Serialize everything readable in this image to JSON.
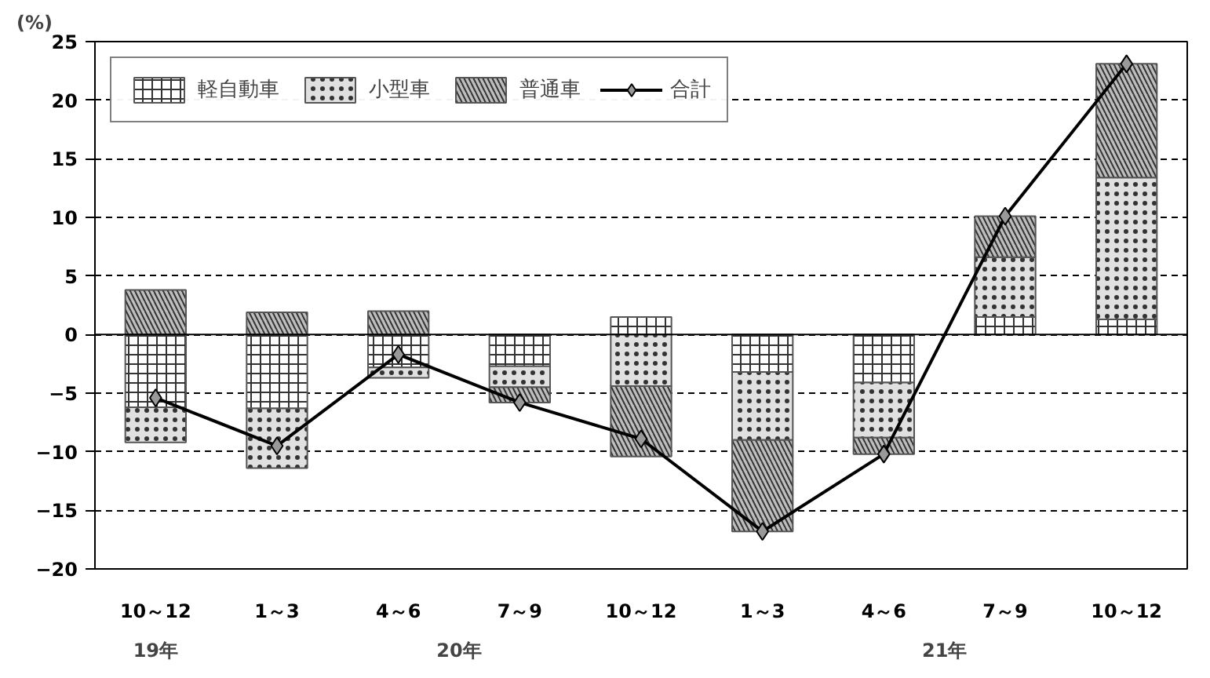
{
  "chart_data": {
    "type": "bar",
    "stacked": true,
    "ylabel": "(%)",
    "categories": [
      "10～12",
      "1～3",
      "4～6",
      "7～9",
      "10～12",
      "1～3",
      "4～6",
      "7～9",
      "10～12"
    ],
    "series": [
      {
        "name": "軽自動車",
        "color": "#ffffff",
        "values": [
          -6.2,
          -6.3,
          -2.8,
          -2.7,
          1.5,
          -3.2,
          -4.1,
          1.5,
          1.3
        ]
      },
      {
        "name": "小型車",
        "color": "#e0e0e0",
        "values": [
          -3.0,
          -5.1,
          -0.9,
          -1.8,
          -4.4,
          -5.8,
          -4.7,
          5.1,
          12.1
        ]
      },
      {
        "name": "普通車",
        "color": "#bdbdbd",
        "values": [
          3.8,
          1.9,
          2.0,
          -1.3,
          -6.0,
          -7.8,
          -1.4,
          3.5,
          9.7
        ]
      },
      {
        "name": "合計",
        "type": "line",
        "color": "#000000",
        "marker": "diamond",
        "values": [
          -5.4,
          -9.5,
          -1.7,
          -5.8,
          -8.9,
          -16.8,
          -10.2,
          10.1,
          23.1
        ]
      }
    ],
    "annotations": [
      "19年",
      "20年",
      "21年"
    ],
    "ylim": [
      -20,
      25
    ],
    "yticks": [
      -20,
      -15,
      -10,
      -5,
      0,
      5,
      10,
      15,
      20,
      25
    ],
    "grid": "y",
    "legend": "top left"
  }
}
